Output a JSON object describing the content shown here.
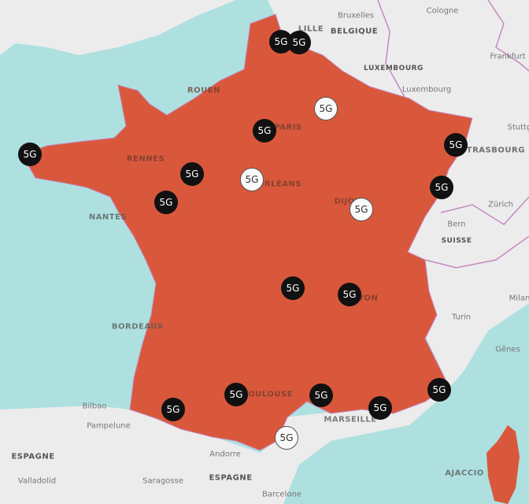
{
  "colors": {
    "sea": "#aee0e0",
    "land": "#ececec",
    "coverage": "#d9583c",
    "border": "#c58ac0",
    "marker_dark": "#111111",
    "marker_light": "#fafafa"
  },
  "labels": {
    "countries": [
      {
        "text": "BELGIQUE"
      },
      {
        "text": "LUXEMBOURG"
      },
      {
        "text": "SUISSE"
      },
      {
        "text": "ESPAGNE"
      },
      {
        "text": "ESPAGNE"
      }
    ],
    "french_cities": [
      {
        "text": "LILLE"
      },
      {
        "text": "ROUEN"
      },
      {
        "text": "PARIS"
      },
      {
        "text": "RENNES"
      },
      {
        "text": "NANTES"
      },
      {
        "text": "ORLÉANS"
      },
      {
        "text": "DIJON"
      },
      {
        "text": "STRASBOURG"
      },
      {
        "text": "LYON"
      },
      {
        "text": "BORDEAUX"
      },
      {
        "text": "TOULOUSE"
      },
      {
        "text": "MARSEILLE"
      },
      {
        "text": "AJACCIO"
      }
    ],
    "foreign_cities": [
      {
        "text": "Bruxelles"
      },
      {
        "text": "Cologne"
      },
      {
        "text": "Frankfurt"
      },
      {
        "text": "Luxembourg"
      },
      {
        "text": "Stuttg"
      },
      {
        "text": "Zürich"
      },
      {
        "text": "Bern"
      },
      {
        "text": "Milan"
      },
      {
        "text": "Turin"
      },
      {
        "text": "Gênes"
      },
      {
        "text": "Bilbao"
      },
      {
        "text": "Pampelune"
      },
      {
        "text": "Andorre"
      },
      {
        "text": "Valladolid"
      },
      {
        "text": "Saragosse"
      },
      {
        "text": "Barcelone"
      }
    ]
  },
  "markers": [
    {
      "label": "5G",
      "style": "dark"
    },
    {
      "label": "5G",
      "style": "dark"
    },
    {
      "label": "5G",
      "style": "light"
    },
    {
      "label": "5G",
      "style": "dark"
    },
    {
      "label": "5G",
      "style": "dark"
    },
    {
      "label": "5G",
      "style": "dark"
    },
    {
      "label": "5G",
      "style": "light"
    },
    {
      "label": "5G",
      "style": "dark"
    },
    {
      "label": "5G",
      "style": "dark"
    },
    {
      "label": "5G",
      "style": "light"
    },
    {
      "label": "5G",
      "style": "dark"
    },
    {
      "label": "5G",
      "style": "dark"
    },
    {
      "label": "5G",
      "style": "dark"
    },
    {
      "label": "5G",
      "style": "dark"
    },
    {
      "label": "5G",
      "style": "dark"
    },
    {
      "label": "5G",
      "style": "dark"
    },
    {
      "label": "5G",
      "style": "dark"
    },
    {
      "label": "5G",
      "style": "dark"
    },
    {
      "label": "5G",
      "style": "light"
    }
  ]
}
